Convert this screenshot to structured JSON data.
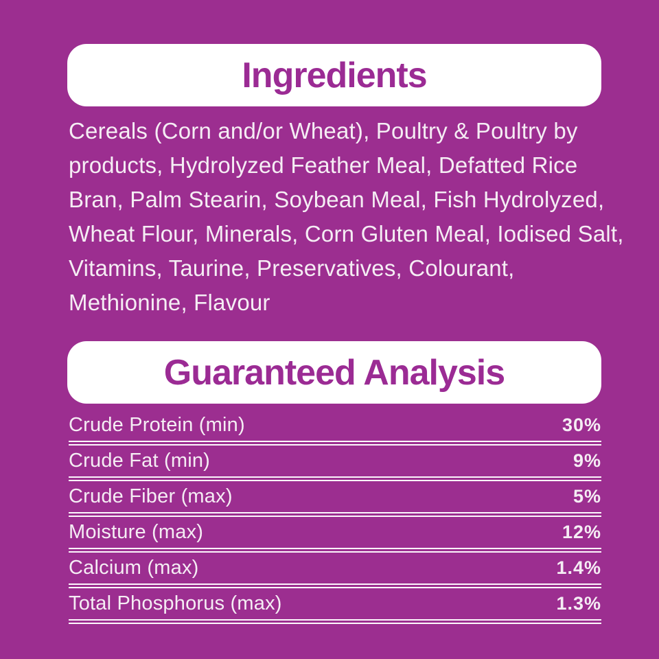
{
  "theme": {
    "background_color": "#9C2E90",
    "panel_color": "#FFFFFF",
    "heading_text_color": "#9B2B94",
    "body_text_color": "#F5EDF4",
    "divider_color": "#FDF8FD"
  },
  "ingredients": {
    "title": "Ingredients",
    "text": "Cereals (Corn and/or Wheat), Poultry & Poultry by products, Hydrolyzed Feather Meal, Defatted Rice Bran, Palm Stearin, Soybean Meal, Fish Hydrolyzed, Wheat Flour, Minerals, Corn Gluten Meal, Iodised Salt, Vitamins, Taurine, Preservatives, Colourant, Methionine, Flavour"
  },
  "guaranteed_analysis": {
    "title": "Guaranteed Analysis",
    "rows": [
      {
        "label": "Crude Protein (min)",
        "value": "30%"
      },
      {
        "label": "Crude Fat (min)",
        "value": "9%"
      },
      {
        "label": "Crude Fiber (max)",
        "value": "5%"
      },
      {
        "label": "Moisture (max)",
        "value": "12%"
      },
      {
        "label": "Calcium (max)",
        "value": "1.4%"
      },
      {
        "label": "Total Phosphorus (max)",
        "value": "1.3%"
      }
    ]
  }
}
